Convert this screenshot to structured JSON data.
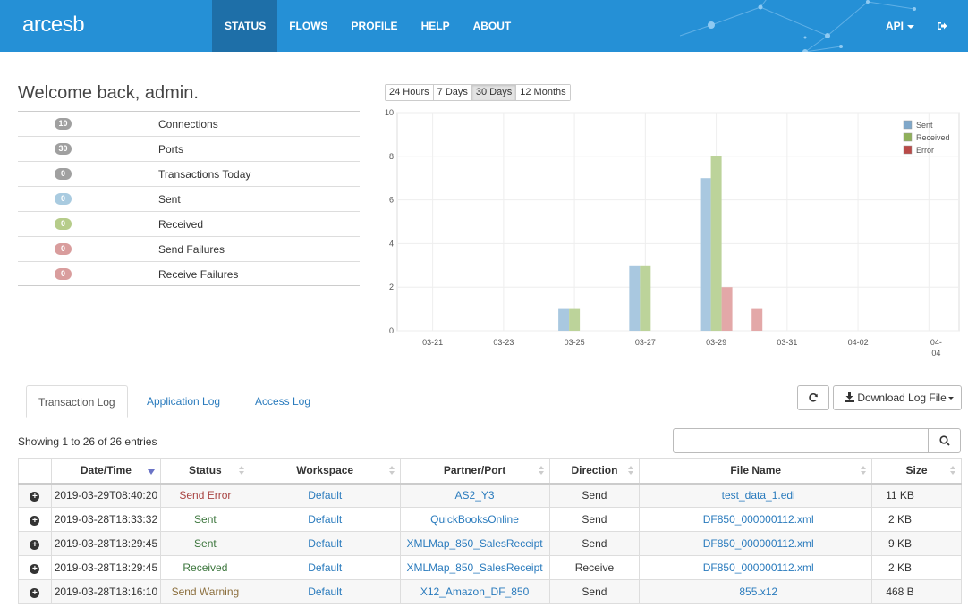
{
  "brand": {
    "logo_text": "arcesb"
  },
  "nav": {
    "items": [
      {
        "label": "STATUS",
        "active": true
      },
      {
        "label": "FLOWS"
      },
      {
        "label": "PROFILE"
      },
      {
        "label": "HELP"
      },
      {
        "label": "ABOUT"
      }
    ],
    "api_label": "API",
    "logout_icon": "sign-out-icon"
  },
  "welcome": "Welcome back, admin.",
  "stats": [
    {
      "count": "10",
      "label": "Connections",
      "color": "#a0a0a0"
    },
    {
      "count": "30",
      "label": "Ports",
      "color": "#a0a0a0"
    },
    {
      "count": "0",
      "label": "Transactions Today",
      "color": "#a0a0a0"
    },
    {
      "count": "0",
      "label": "Sent",
      "color": "#a9cbe0"
    },
    {
      "count": "0",
      "label": "Received",
      "color": "#b6cc8a"
    },
    {
      "count": "0",
      "label": "Send Failures",
      "color": "#d99d9d"
    },
    {
      "count": "0",
      "label": "Receive Failures",
      "color": "#d99d9d"
    }
  ],
  "ranges": [
    {
      "label": "24 Hours"
    },
    {
      "label": "7 Days"
    },
    {
      "label": "30 Days",
      "active": true
    },
    {
      "label": "12 Months"
    }
  ],
  "chart_data": {
    "type": "bar",
    "x_tick_labels": [
      "03-21",
      "03-23",
      "03-25",
      "03-27",
      "03-29",
      "03-31",
      "04-02",
      "04-04"
    ],
    "ylim": [
      0,
      10
    ],
    "y_ticks": [
      0,
      2,
      4,
      6,
      8,
      10
    ],
    "grid": true,
    "legend": "top-right",
    "series": [
      {
        "name": "Sent",
        "color": "#a9c8e0",
        "points": [
          [
            "03-25",
            1
          ],
          [
            "03-27",
            3
          ],
          [
            "03-29",
            7
          ]
        ]
      },
      {
        "name": "Received",
        "color": "#bcd39a",
        "points": [
          [
            "03-25",
            1
          ],
          [
            "03-27",
            3
          ],
          [
            "03-29",
            8
          ]
        ]
      },
      {
        "name": "Error",
        "color": "#e3a8a8",
        "points": [
          [
            "03-29",
            2
          ],
          [
            "03-30",
            1
          ]
        ]
      }
    ],
    "legend_colors": [
      "#7fa7c9",
      "#8fb05a",
      "#b94a48"
    ]
  },
  "tabs": [
    {
      "label": "Transaction Log",
      "active": true
    },
    {
      "label": "Application Log"
    },
    {
      "label": "Access Log"
    }
  ],
  "buttons": {
    "refresh_icon": "refresh-icon",
    "download_label": "Download Log File",
    "download_icon": "download-icon"
  },
  "showing": "Showing 1 to 26 of 26 entries",
  "search": {
    "value": "",
    "placeholder": ""
  },
  "table": {
    "columns": [
      "",
      "Date/Time",
      "Status",
      "Workspace",
      "Partner/Port",
      "Direction",
      "File Name",
      "Size"
    ],
    "rows": [
      {
        "datetime": "2019-03-29T08:40:20",
        "status": "Send Error",
        "status_color": "#a94442",
        "workspace": "Default",
        "port": "AS2_Y3",
        "direction": "Send",
        "file": "test_data_1.edi",
        "size": "11 KB"
      },
      {
        "datetime": "2019-03-28T18:33:32",
        "status": "Sent",
        "status_color": "#3c763d",
        "workspace": "Default",
        "port": "QuickBooksOnline",
        "direction": "Send",
        "file": "DF850_000000112.xml",
        "size": "2 KB"
      },
      {
        "datetime": "2019-03-28T18:29:45",
        "status": "Sent",
        "status_color": "#3c763d",
        "workspace": "Default",
        "port": "XMLMap_850_SalesReceipt",
        "direction": "Send",
        "file": "DF850_000000112.xml",
        "size": "9 KB"
      },
      {
        "datetime": "2019-03-28T18:29:45",
        "status": "Received",
        "status_color": "#3c763d",
        "workspace": "Default",
        "port": "XMLMap_850_SalesReceipt",
        "direction": "Receive",
        "file": "DF850_000000112.xml",
        "size": "2 KB"
      },
      {
        "datetime": "2019-03-28T18:16:10",
        "status": "Send Warning",
        "status_color": "#8a6d3b",
        "workspace": "Default",
        "port": "X12_Amazon_DF_850",
        "direction": "Send",
        "file": "855.x12",
        "size": "468 B"
      }
    ]
  }
}
